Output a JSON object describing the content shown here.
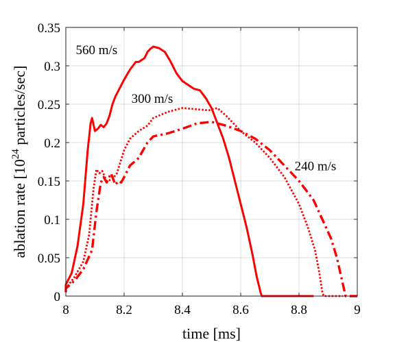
{
  "chart_data": {
    "type": "line",
    "title": "",
    "xlabel": "time [ms]",
    "ylabel": {
      "prefix": "ablation rate [10",
      "exponent": "24",
      "suffix": " particles/sec]"
    },
    "xlim": [
      8,
      9
    ],
    "ylim": [
      0,
      0.35
    ],
    "xticks": [
      8,
      8.2,
      8.4,
      8.6,
      8.8,
      9
    ],
    "xtick_labels": [
      "8",
      "8.2",
      "8.4",
      "8.6",
      "8.8",
      "9"
    ],
    "yticks": [
      0,
      0.05,
      0.1,
      0.15,
      0.2,
      0.25,
      0.3,
      0.35
    ],
    "ytick_labels": [
      "0",
      "0.05",
      "0.1",
      "0.15",
      "0.2",
      "0.25",
      "0.3",
      "0.35"
    ],
    "grid": true,
    "legend": "none",
    "color": "#ff0000",
    "series": [
      {
        "style": "solid",
        "x": [
          7.995,
          8.0,
          8.02,
          8.04,
          8.06,
          8.075,
          8.085,
          8.09,
          8.1,
          8.11,
          8.12,
          8.13,
          8.14,
          8.15,
          8.16,
          8.17,
          8.2,
          8.22,
          8.24,
          8.25,
          8.27,
          8.28,
          8.29,
          8.3,
          8.32,
          8.34,
          8.36,
          8.38,
          8.4,
          8.42,
          8.44,
          8.46,
          8.48,
          8.5,
          8.52,
          8.54,
          8.56,
          8.58,
          8.6,
          8.62,
          8.64,
          8.655,
          8.668,
          8.672,
          8.7,
          8.75,
          8.8,
          8.85
        ],
        "y": [
          0.005,
          0.015,
          0.03,
          0.065,
          0.12,
          0.19,
          0.225,
          0.232,
          0.215,
          0.218,
          0.223,
          0.22,
          0.225,
          0.235,
          0.25,
          0.26,
          0.282,
          0.295,
          0.305,
          0.305,
          0.31,
          0.318,
          0.322,
          0.325,
          0.323,
          0.318,
          0.305,
          0.29,
          0.28,
          0.275,
          0.27,
          0.268,
          0.258,
          0.245,
          0.225,
          0.205,
          0.18,
          0.15,
          0.12,
          0.09,
          0.055,
          0.025,
          0.005,
          0.0,
          0.0,
          0.0,
          0.0,
          0.0
        ]
      },
      {
        "style": "dotted",
        "x": [
          7.995,
          8.0,
          8.03,
          8.06,
          8.08,
          8.095,
          8.105,
          8.115,
          8.125,
          8.14,
          8.16,
          8.175,
          8.19,
          8.2,
          8.22,
          8.25,
          8.28,
          8.3,
          8.35,
          8.4,
          8.43,
          8.46,
          8.49,
          8.52,
          8.55,
          8.6,
          8.65,
          8.7,
          8.75,
          8.8,
          8.83,
          8.855,
          8.87,
          8.88,
          8.885,
          8.92,
          8.95
        ],
        "y": [
          0.005,
          0.01,
          0.025,
          0.045,
          0.08,
          0.14,
          0.165,
          0.16,
          0.163,
          0.15,
          0.152,
          0.16,
          0.178,
          0.19,
          0.205,
          0.215,
          0.222,
          0.232,
          0.24,
          0.245,
          0.244,
          0.243,
          0.242,
          0.245,
          0.235,
          0.215,
          0.2,
          0.18,
          0.155,
          0.12,
          0.09,
          0.06,
          0.03,
          0.005,
          0.0,
          0.0,
          0.0
        ]
      },
      {
        "style": "dashdot",
        "x": [
          7.995,
          8.0,
          8.03,
          8.06,
          8.09,
          8.105,
          8.12,
          8.13,
          8.14,
          8.155,
          8.17,
          8.18,
          8.19,
          8.2,
          8.22,
          8.25,
          8.28,
          8.3,
          8.35,
          8.4,
          8.45,
          8.5,
          8.55,
          8.6,
          8.65,
          8.7,
          8.75,
          8.8,
          8.85,
          8.88,
          8.91,
          8.93,
          8.945,
          8.955,
          8.96,
          8.98,
          9.0
        ],
        "y": [
          0.005,
          0.01,
          0.02,
          0.035,
          0.06,
          0.11,
          0.148,
          0.155,
          0.148,
          0.16,
          0.145,
          0.15,
          0.148,
          0.155,
          0.17,
          0.18,
          0.2,
          0.208,
          0.212,
          0.218,
          0.225,
          0.227,
          0.222,
          0.215,
          0.205,
          0.19,
          0.17,
          0.15,
          0.125,
          0.1,
          0.075,
          0.05,
          0.025,
          0.008,
          0.0,
          0.0,
          0.0
        ]
      }
    ],
    "annotations": [
      {
        "text": "560 m/s",
        "x": 8.034,
        "y": 0.315
      },
      {
        "text": "300 m/s",
        "x": 8.225,
        "y": 0.252
      },
      {
        "text": "240 m/s",
        "x": 8.785,
        "y": 0.164
      }
    ]
  }
}
